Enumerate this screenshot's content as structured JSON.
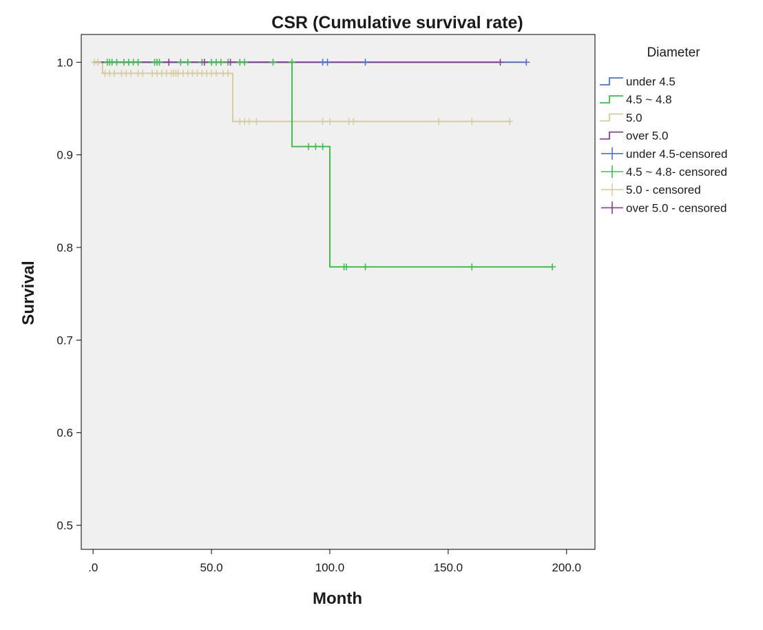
{
  "chart_data": {
    "type": "line",
    "subtype": "kaplan-meier-step",
    "title": "CSR (Cumulative survival rate)",
    "xlabel": "Month",
    "ylabel": "Survival",
    "xlim": [
      -5,
      212
    ],
    "ylim": [
      0.474,
      1.03
    ],
    "x_ticks": [
      0,
      50,
      100,
      150,
      200
    ],
    "x_tick_labels": [
      ".0",
      "50.0",
      "100.0",
      "150.0",
      "200.0"
    ],
    "y_ticks": [
      0.5,
      0.6,
      0.7,
      0.8,
      0.9,
      1.0
    ],
    "y_tick_labels": [
      "0.5",
      "0.6",
      "0.7",
      "0.8",
      "0.9",
      "1.0"
    ],
    "grid": false,
    "legend_title": "Diameter",
    "legend_position": "right",
    "legend_entries": [
      {
        "label": "under 4.5",
        "kind": "line",
        "color": "#4a74c9"
      },
      {
        "label": "4.5 ~ 4.8",
        "kind": "line",
        "color": "#3cc04a"
      },
      {
        "label": "5.0",
        "kind": "line",
        "color": "#d6cc9c"
      },
      {
        "label": "over 5.0",
        "kind": "line",
        "color": "#8a3c96"
      },
      {
        "label": "under 4.5-censored",
        "kind": "censor",
        "color": "#4a74c9"
      },
      {
        "label": "4.5 ~ 4.8- censored",
        "kind": "censor",
        "color": "#3cc04a"
      },
      {
        "label": "5.0 - censored",
        "kind": "censor",
        "color": "#d6cc9c"
      },
      {
        "label": "over 5.0 - censored",
        "kind": "censor",
        "color": "#8a3c96"
      }
    ],
    "series": [
      {
        "name": "5.0",
        "color": "#d6cc9c",
        "steps": [
          [
            0,
            1.0
          ],
          [
            4,
            0.988
          ],
          [
            59,
            0.936
          ],
          [
            176,
            0.936
          ]
        ],
        "censored": [
          [
            0.5,
            1.0
          ],
          [
            2,
            1.0
          ],
          [
            5,
            0.988
          ],
          [
            7,
            0.988
          ],
          [
            9,
            0.988
          ],
          [
            12,
            0.988
          ],
          [
            14,
            0.988
          ],
          [
            16,
            0.988
          ],
          [
            19,
            0.988
          ],
          [
            21,
            0.988
          ],
          [
            25,
            0.988
          ],
          [
            27,
            0.988
          ],
          [
            29,
            0.988
          ],
          [
            31,
            0.988
          ],
          [
            33,
            0.988
          ],
          [
            34,
            0.988
          ],
          [
            35,
            0.988
          ],
          [
            36,
            0.988
          ],
          [
            38,
            0.988
          ],
          [
            40,
            0.988
          ],
          [
            42,
            0.988
          ],
          [
            44,
            0.988
          ],
          [
            46,
            0.988
          ],
          [
            48,
            0.988
          ],
          [
            50,
            0.988
          ],
          [
            52,
            0.988
          ],
          [
            55,
            0.988
          ],
          [
            57,
            0.988
          ],
          [
            62,
            0.936
          ],
          [
            64,
            0.936
          ],
          [
            66,
            0.936
          ],
          [
            69,
            0.936
          ],
          [
            97,
            0.936
          ],
          [
            100,
            0.936
          ],
          [
            108,
            0.936
          ],
          [
            110,
            0.936
          ],
          [
            146,
            0.936
          ],
          [
            160,
            0.936
          ],
          [
            176,
            0.936
          ]
        ]
      },
      {
        "name": "4.5 ~ 4.8",
        "color": "#3cc04a",
        "steps": [
          [
            0,
            1.0
          ],
          [
            84,
            1.0
          ],
          [
            84,
            0.909
          ],
          [
            100,
            0.909
          ],
          [
            100,
            0.779
          ],
          [
            194,
            0.779
          ]
        ],
        "censored": [
          [
            6,
            1.0
          ],
          [
            7,
            1.0
          ],
          [
            8,
            1.0
          ],
          [
            10,
            1.0
          ],
          [
            13,
            1.0
          ],
          [
            15,
            1.0
          ],
          [
            17,
            1.0
          ],
          [
            19,
            1.0
          ],
          [
            26,
            1.0
          ],
          [
            27,
            1.0
          ],
          [
            28,
            1.0
          ],
          [
            37,
            1.0
          ],
          [
            40,
            1.0
          ],
          [
            46,
            1.0
          ],
          [
            50,
            1.0
          ],
          [
            52,
            1.0
          ],
          [
            54,
            1.0
          ],
          [
            57,
            1.0
          ],
          [
            62,
            1.0
          ],
          [
            64,
            1.0
          ],
          [
            76,
            1.0
          ],
          [
            84,
            1.0
          ],
          [
            91,
            0.909
          ],
          [
            94,
            0.909
          ],
          [
            97,
            0.909
          ],
          [
            106,
            0.779
          ],
          [
            107,
            0.779
          ],
          [
            115,
            0.779
          ],
          [
            160,
            0.779
          ],
          [
            194,
            0.779
          ]
        ]
      },
      {
        "name": "under 4.5",
        "color": "#4a74c9",
        "steps": [
          [
            0,
            1.0
          ],
          [
            183,
            1.0
          ]
        ],
        "censored": [
          [
            97,
            1.0
          ],
          [
            99,
            1.0
          ],
          [
            115,
            1.0
          ],
          [
            183,
            1.0
          ]
        ]
      },
      {
        "name": "over 5.0",
        "color": "#8a3c96",
        "steps": [
          [
            0,
            1.0
          ],
          [
            172,
            1.0
          ]
        ],
        "censored": [
          [
            32,
            1.0
          ],
          [
            47,
            1.0
          ],
          [
            58,
            1.0
          ],
          [
            172,
            1.0
          ]
        ]
      }
    ]
  }
}
